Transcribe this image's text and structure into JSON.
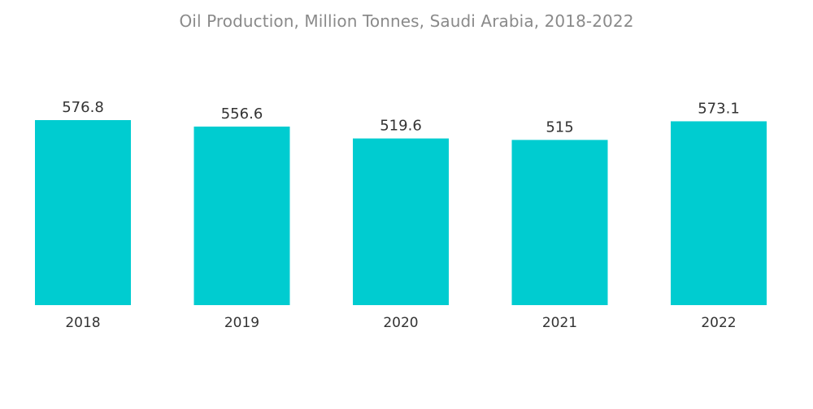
{
  "chart_data": {
    "type": "bar",
    "title": "Oil Production, Million Tonnes, Saudi Arabia, 2018-2022",
    "categories": [
      "2018",
      "2019",
      "2020",
      "2021",
      "2022"
    ],
    "values": [
      576.8,
      556.6,
      519.6,
      515,
      573.1
    ],
    "value_labels": [
      "576.8",
      "556.6",
      "519.6",
      "515",
      "573.1"
    ],
    "xlabel": "",
    "ylabel": "",
    "ylim": [
      0,
      576.8
    ],
    "grid": false,
    "bar_color": "#00CCD0"
  }
}
